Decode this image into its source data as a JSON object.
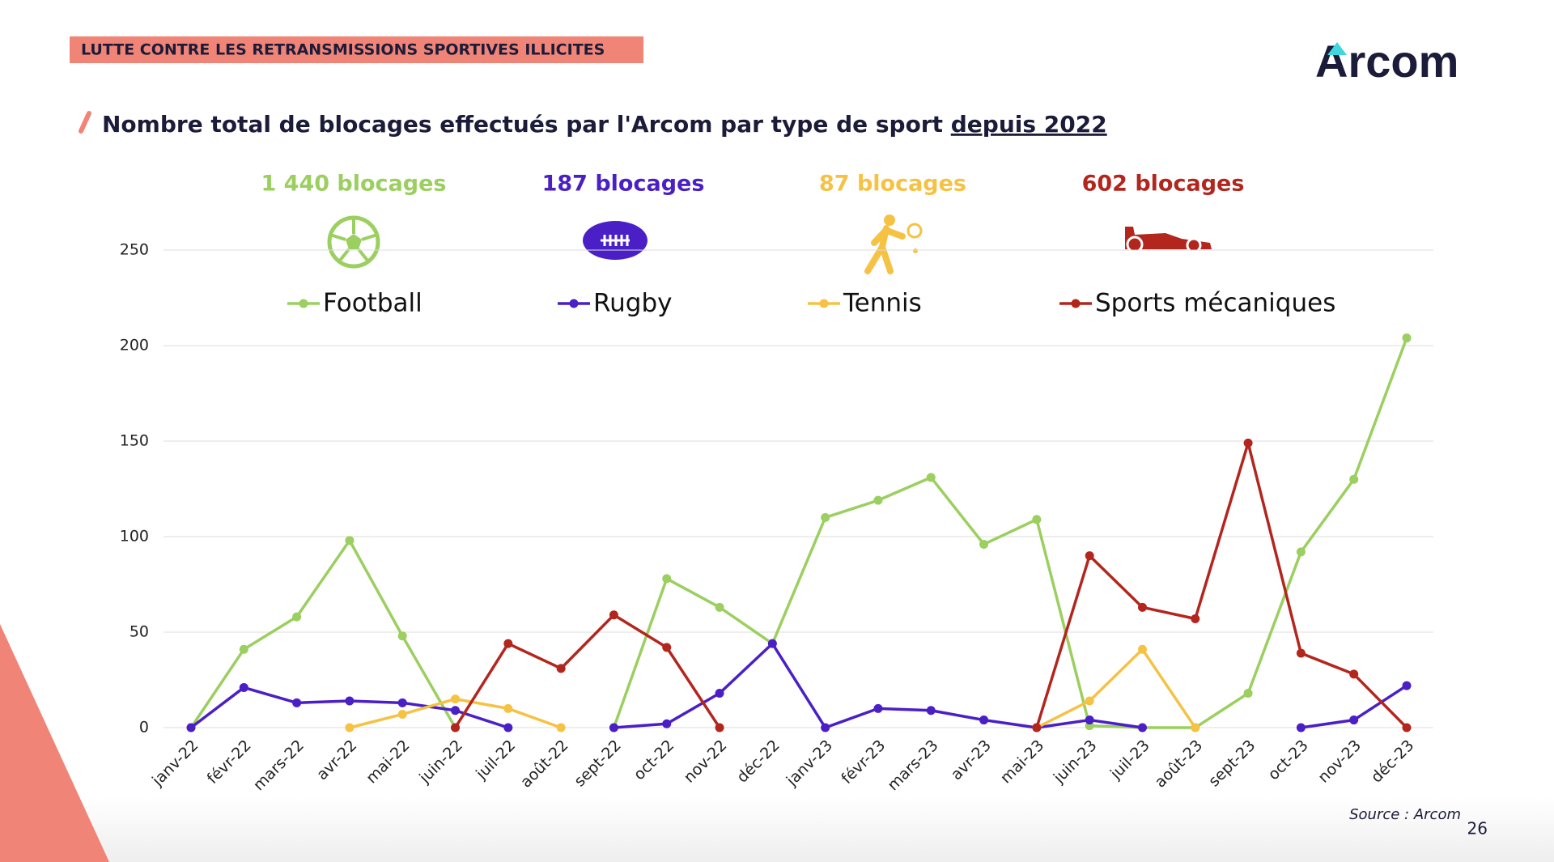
{
  "header": {
    "banner": "LUTTE CONTRE LES RETRANSMISSIONS SPORTIVES ILLICITES",
    "logo": "Arcom"
  },
  "chart_data": {
    "type": "line",
    "title": "Nombre total de blocages effectués par l'Arcom par type de sport",
    "title_underlined": "depuis 2022",
    "categories": [
      "janv-22",
      "févr-22",
      "mars-22",
      "avr-22",
      "mai-22",
      "juin-22",
      "juil-22",
      "août-22",
      "sept-22",
      "oct-22",
      "nov-22",
      "déc-22",
      "janv-23",
      "févr-23",
      "mars-23",
      "avr-23",
      "mai-23",
      "juin-23",
      "juil-23",
      "août-23",
      "sept-23",
      "oct-23",
      "nov-23",
      "déc-23"
    ],
    "series": [
      {
        "name": "Football",
        "color": "#9bcf5f",
        "total_label": "1 440 blocages",
        "values": [
          0,
          41,
          58,
          98,
          48,
          0,
          null,
          null,
          0,
          78,
          63,
          44,
          110,
          119,
          131,
          96,
          109,
          1,
          0,
          0,
          18,
          92,
          130,
          204
        ]
      },
      {
        "name": "Rugby",
        "color": "#4a1fc6",
        "total_label": "187 blocages",
        "values": [
          0,
          21,
          13,
          14,
          13,
          9,
          0,
          null,
          0,
          2,
          18,
          44,
          0,
          10,
          9,
          4,
          0,
          4,
          0,
          null,
          null,
          0,
          4,
          22
        ]
      },
      {
        "name": "Tennis",
        "color": "#f5c243",
        "total_label": "87 blocages",
        "values": [
          null,
          null,
          null,
          0,
          7,
          15,
          10,
          0,
          null,
          null,
          null,
          null,
          null,
          null,
          null,
          null,
          0,
          14,
          41,
          0,
          null,
          null,
          null,
          null
        ]
      },
      {
        "name": "Sports mécaniques",
        "color": "#b3261e",
        "total_label": "602 blocages",
        "values": [
          null,
          null,
          null,
          null,
          null,
          0,
          44,
          31,
          59,
          42,
          0,
          null,
          null,
          null,
          null,
          null,
          0,
          90,
          63,
          57,
          149,
          39,
          28,
          0
        ]
      }
    ],
    "ylim": [
      0,
      250
    ],
    "yticks": [
      0,
      50,
      100,
      150,
      200,
      250
    ],
    "grid": true,
    "source": "Source : Arcom"
  },
  "footer": {
    "page_number": "26"
  }
}
